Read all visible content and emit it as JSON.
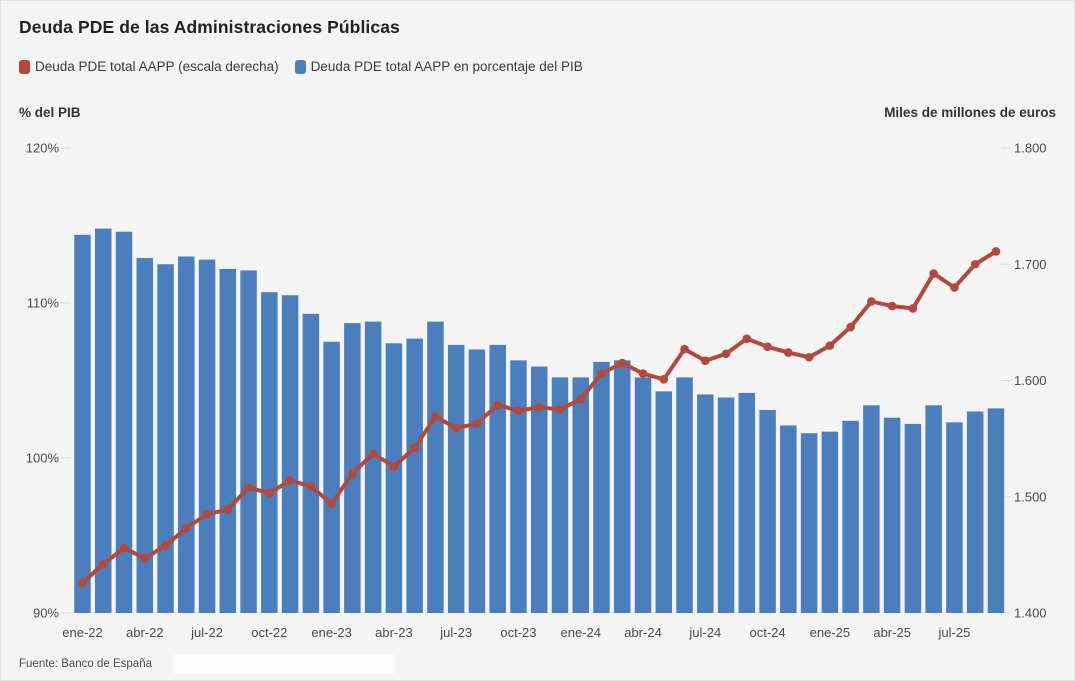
{
  "title": "Deuda PDE de las Administraciones Públicas",
  "source": "Fuente: Banco de España",
  "legend": [
    {
      "label": "Deuda PDE total AAPP (escala derecha)",
      "color": "#b3493c"
    },
    {
      "label": "Deuda PDE total AAPP en porcentaje del PIB",
      "color": "#4a7ebc"
    }
  ],
  "left_axis_title": "% del PIB",
  "right_axis_title": "Miles de millones de euros",
  "chart_data": {
    "type": "bar",
    "subtype": "bar-and-line-dual-axis",
    "title": "Deuda PDE de las Administraciones Públicas",
    "xlabel": "",
    "ylabel_left": "% del PIB",
    "ylabel_right": "Miles de millones de euros",
    "grid": "ticks-only",
    "legend_position": "top-left",
    "categories": [
      "ene-22",
      "feb-22",
      "mar-22",
      "abr-22",
      "may-22",
      "jun-22",
      "jul-22",
      "ago-22",
      "sep-22",
      "oct-22",
      "nov-22",
      "dic-22",
      "ene-23",
      "feb-23",
      "mar-23",
      "abr-23",
      "may-23",
      "jun-23",
      "jul-23",
      "ago-23",
      "sep-23",
      "oct-23",
      "nov-23",
      "dic-23",
      "ene-24",
      "feb-24",
      "mar-24",
      "abr-24",
      "may-24",
      "jun-24",
      "jul-24",
      "ago-24",
      "sep-24",
      "oct-24",
      "nov-24",
      "dic-24",
      "ene-25",
      "feb-25",
      "mar-25",
      "abr-25",
      "may-25",
      "jun-25",
      "jul-25",
      "ago-25",
      "sep-25"
    ],
    "x_tick_labels": [
      "ene-22",
      "abr-22",
      "jul-22",
      "oct-22",
      "ene-23",
      "abr-23",
      "jul-23",
      "oct-23",
      "ene-24",
      "abr-24",
      "jul-24",
      "oct-24",
      "ene-25",
      "abr-25",
      "jul-25"
    ],
    "series": [
      {
        "name": "Deuda PDE total AAPP en porcentaje del PIB",
        "type": "bar",
        "axis": "left",
        "color": "#4a7ebc",
        "unit": "% del PIB",
        "values": [
          114.4,
          114.8,
          114.6,
          112.9,
          112.5,
          113.0,
          112.8,
          112.2,
          112.1,
          110.7,
          110.5,
          109.3,
          107.5,
          108.7,
          108.8,
          107.4,
          107.7,
          108.8,
          107.3,
          107.0,
          107.3,
          106.3,
          105.9,
          105.2,
          105.2,
          106.2,
          106.3,
          105.2,
          104.3,
          105.2,
          104.1,
          103.9,
          104.2,
          103.1,
          102.1,
          101.6,
          101.7,
          102.4,
          103.4,
          102.6,
          102.2,
          103.4,
          102.3,
          103.0,
          103.2
        ]
      },
      {
        "name": "Deuda PDE total AAPP (escala derecha)",
        "type": "line",
        "axis": "right",
        "color": "#b3493c",
        "unit": "miles de millones de euros",
        "values": [
          1426,
          1442,
          1456,
          1447,
          1458,
          1473,
          1485,
          1489,
          1508,
          1503,
          1514,
          1509,
          1494,
          1520,
          1537,
          1526,
          1542,
          1569,
          1559,
          1563,
          1579,
          1574,
          1577,
          1575,
          1584,
          1606,
          1615,
          1606,
          1601,
          1627,
          1617,
          1623,
          1636,
          1629,
          1624,
          1620,
          1630,
          1646,
          1668,
          1664,
          1662,
          1692,
          1680,
          1700,
          1711
        ]
      }
    ],
    "left_axis": {
      "min": 90,
      "max": 120,
      "ticks": [
        {
          "label": "120%",
          "value": 120
        },
        {
          "label": "110%",
          "value": 110
        },
        {
          "label": "100%",
          "value": 100
        },
        {
          "label": "90%",
          "value": 90
        }
      ]
    },
    "right_axis": {
      "min": 1400,
      "max": 1800,
      "ticks": [
        {
          "label": "1.800",
          "value": 1800
        },
        {
          "label": "1.700",
          "value": 1700
        },
        {
          "label": "1.600",
          "value": 1600
        },
        {
          "label": "1.500",
          "value": 1500
        },
        {
          "label": "1.400",
          "value": 1400
        }
      ]
    }
  }
}
